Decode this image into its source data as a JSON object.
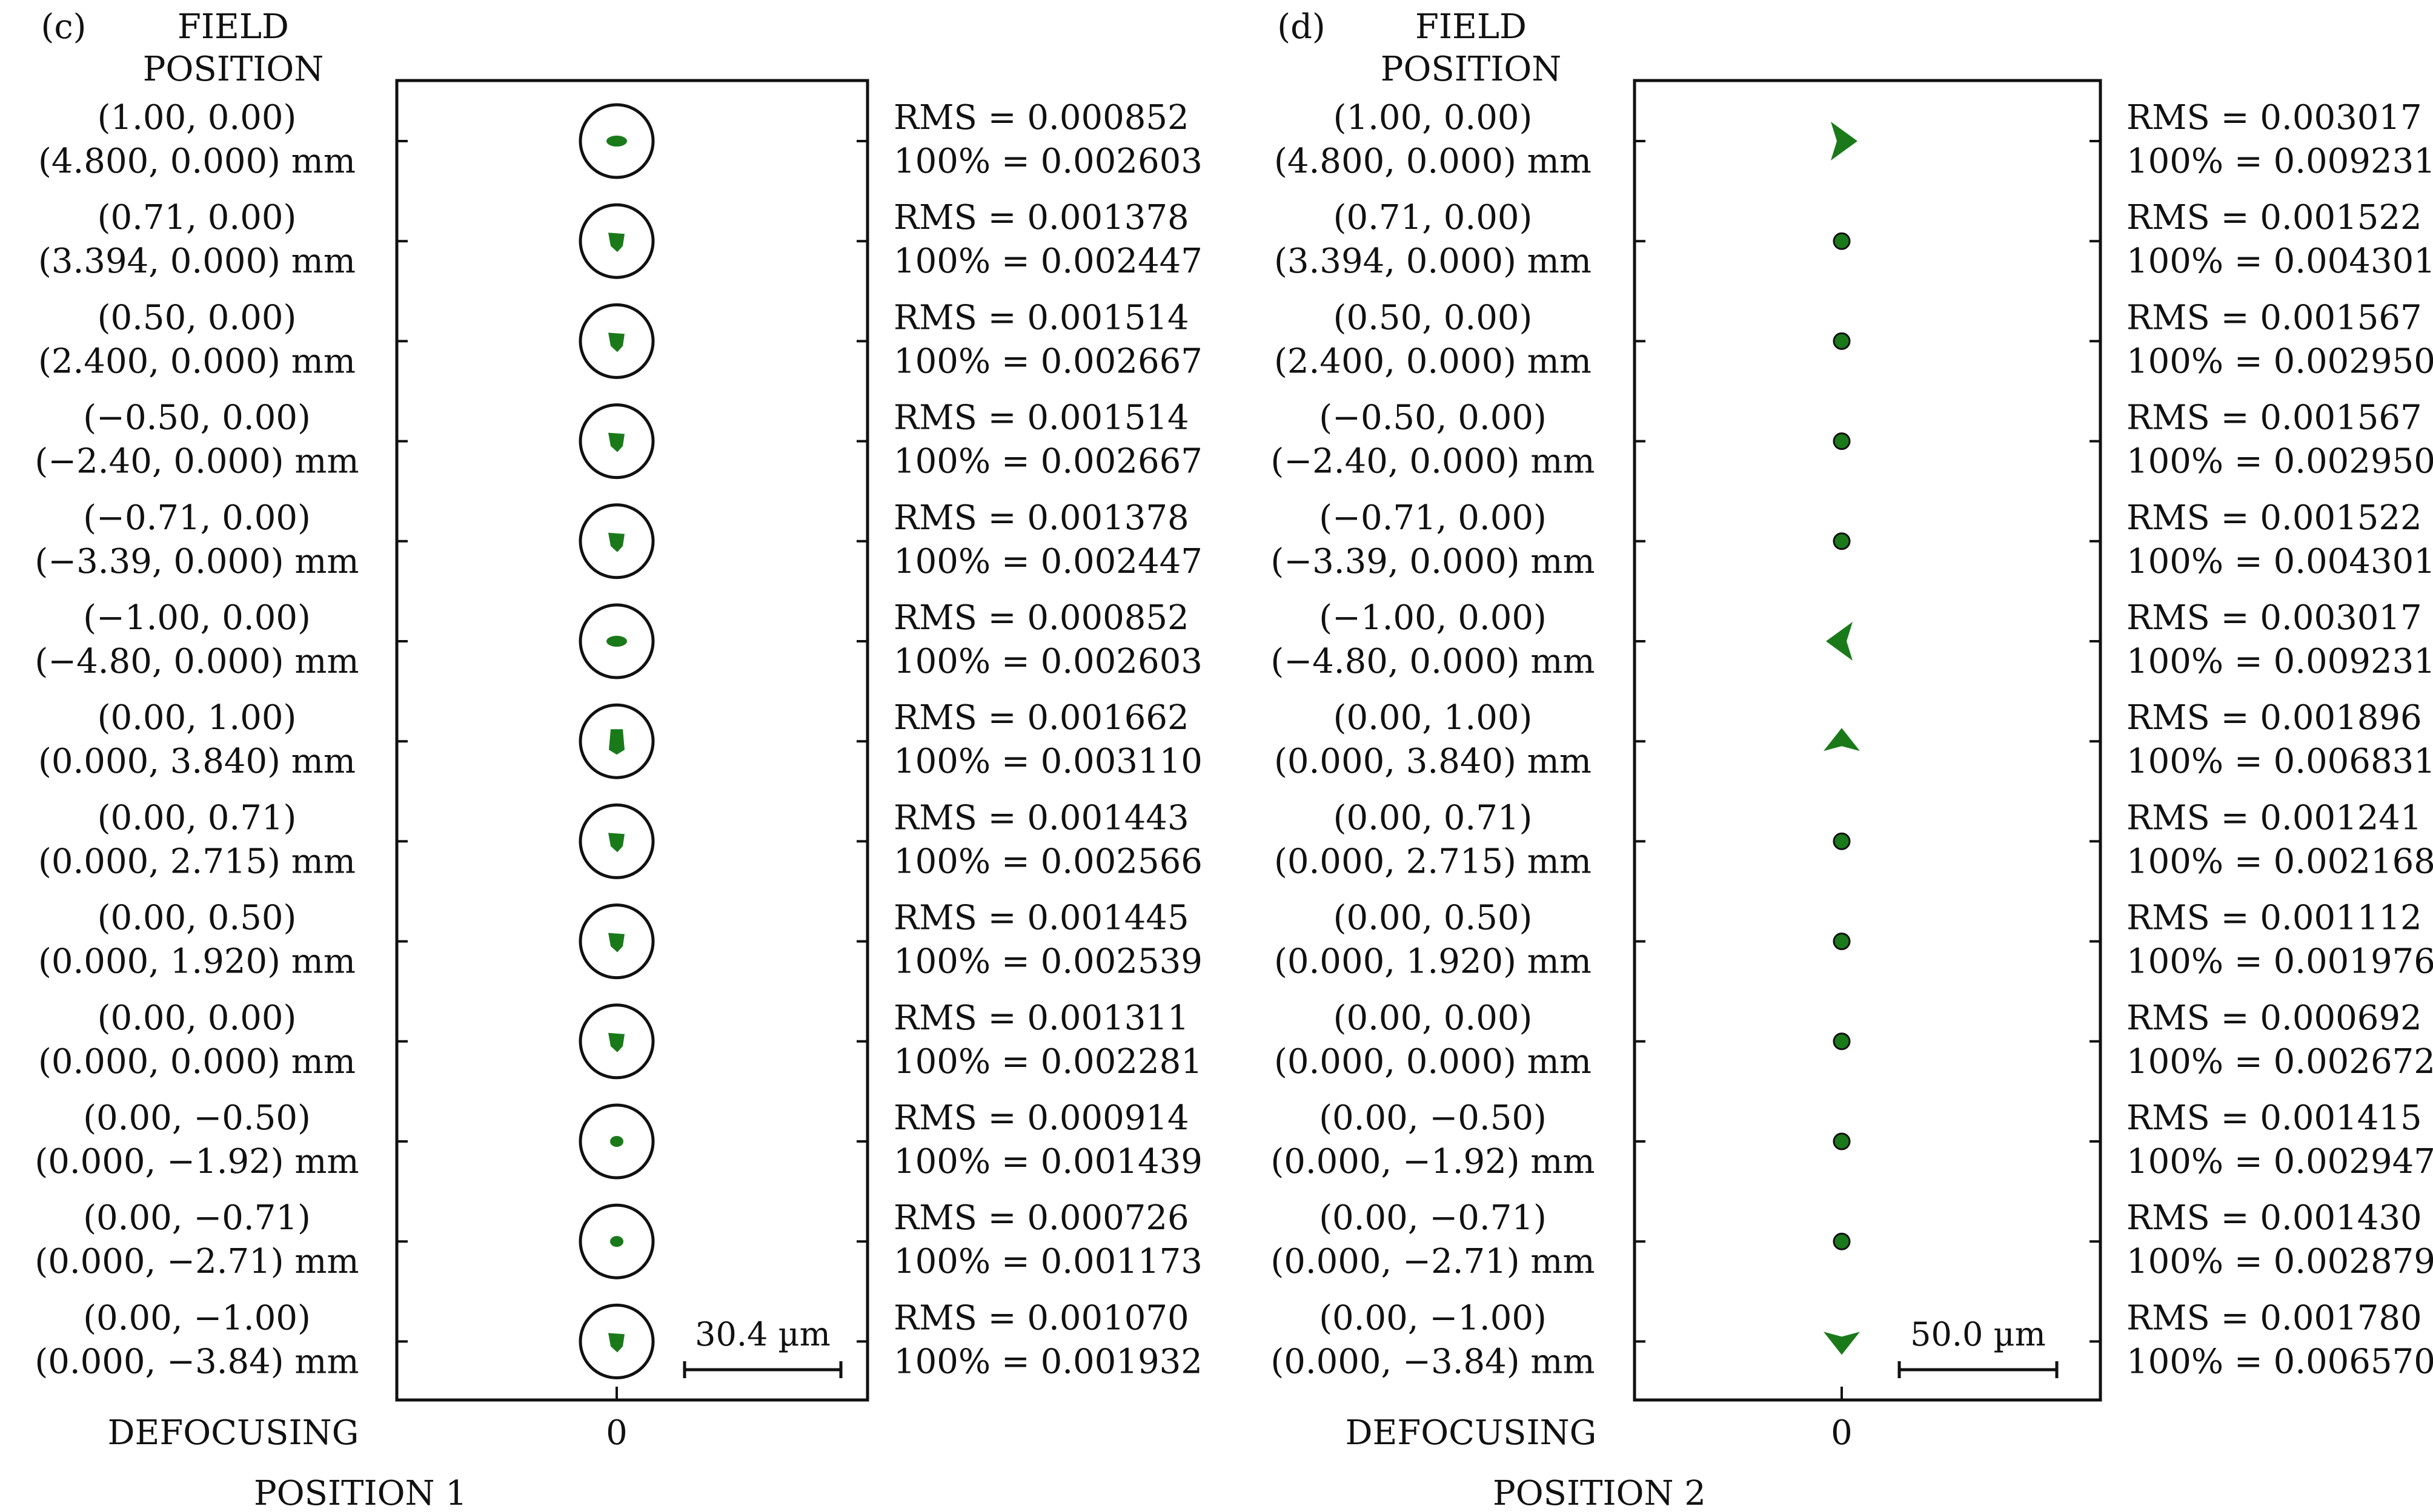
{
  "panels": [
    {
      "id": "c",
      "panel_label": "(c)",
      "field_header": [
        "FIELD",
        "POSITION"
      ],
      "defocus_label": "DEFOCUSING",
      "defocus_tick": "0",
      "position_label": "POSITION 1",
      "scale_label": "30.4 µm",
      "spot_color": "#1a7a1a",
      "airy_disk_shown": true,
      "rows": [
        {
          "field": "(1.00, 0.00)",
          "coord": "(4.800, 0.000) mm",
          "rms": "RMS = 0.000852",
          "geo": "100% = 0.002603",
          "spot": "smear-h"
        },
        {
          "field": "(0.71, 0.00)",
          "coord": "(3.394, 0.000) mm",
          "rms": "RMS = 0.001378",
          "geo": "100% = 0.002447",
          "spot": "blob"
        },
        {
          "field": "(0.50, 0.00)",
          "coord": "(2.400, 0.000) mm",
          "rms": "RMS = 0.001514",
          "geo": "100% = 0.002667",
          "spot": "blob"
        },
        {
          "field": "(−0.50, 0.00)",
          "coord": "(−2.40, 0.000) mm",
          "rms": "RMS = 0.001514",
          "geo": "100% = 0.002667",
          "spot": "blob"
        },
        {
          "field": "(−0.71, 0.00)",
          "coord": "(−3.39, 0.000) mm",
          "rms": "RMS = 0.001378",
          "geo": "100% = 0.002447",
          "spot": "blob"
        },
        {
          "field": "(−1.00, 0.00)",
          "coord": "(−4.80, 0.000) mm",
          "rms": "RMS = 0.000852",
          "geo": "100% = 0.002603",
          "spot": "smear-h"
        },
        {
          "field": "(0.00, 1.00)",
          "coord": "(0.000, 3.840) mm",
          "rms": "RMS = 0.001662",
          "geo": "100% = 0.003110",
          "spot": "tall"
        },
        {
          "field": "(0.00, 0.71)",
          "coord": "(0.000, 2.715) mm",
          "rms": "RMS = 0.001443",
          "geo": "100% = 0.002566",
          "spot": "blob"
        },
        {
          "field": "(0.00, 0.50)",
          "coord": "(0.000, 1.920) mm",
          "rms": "RMS = 0.001445",
          "geo": "100% = 0.002539",
          "spot": "blob"
        },
        {
          "field": "(0.00, 0.00)",
          "coord": "(0.000, 0.000) mm",
          "rms": "RMS = 0.001311",
          "geo": "100% = 0.002281",
          "spot": "blob"
        },
        {
          "field": "(0.00, −0.50)",
          "coord": "(0.000, −1.92) mm",
          "rms": "RMS = 0.000914",
          "geo": "100% = 0.001439",
          "spot": "small"
        },
        {
          "field": "(0.00, −0.71)",
          "coord": "(0.000, −2.71) mm",
          "rms": "RMS = 0.000726",
          "geo": "100% = 0.001173",
          "spot": "small"
        },
        {
          "field": "(0.00, −1.00)",
          "coord": "(0.000, −3.84) mm",
          "rms": "RMS = 0.001070",
          "geo": "100% = 0.001932",
          "spot": "blob"
        }
      ]
    },
    {
      "id": "d",
      "panel_label": "(d)",
      "field_header": [
        "FIELD",
        "POSITION"
      ],
      "defocus_label": "DEFOCUSING",
      "defocus_tick": "0",
      "position_label": "POSITION 2",
      "scale_label": "50.0 µm",
      "spot_color": "#1a7a1a",
      "airy_disk_shown": false,
      "rows": [
        {
          "field": "(1.00, 0.00)",
          "coord": "(4.800, 0.000) mm",
          "rms": "RMS = 0.003017",
          "geo": "100% = 0.009231",
          "spot": "arrow-r"
        },
        {
          "field": "(0.71, 0.00)",
          "coord": "(3.394, 0.000) mm",
          "rms": "RMS = 0.001522",
          "geo": "100% = 0.004301",
          "spot": "dot"
        },
        {
          "field": "(0.50, 0.00)",
          "coord": "(2.400, 0.000) mm",
          "rms": "RMS = 0.001567",
          "geo": "100% = 0.002950",
          "spot": "dot"
        },
        {
          "field": "(−0.50, 0.00)",
          "coord": "(−2.40, 0.000) mm",
          "rms": "RMS = 0.001567",
          "geo": "100% = 0.002950",
          "spot": "dot"
        },
        {
          "field": "(−0.71, 0.00)",
          "coord": "(−3.39, 0.000) mm",
          "rms": "RMS = 0.001522",
          "geo": "100% = 0.004301",
          "spot": "dot"
        },
        {
          "field": "(−1.00, 0.00)",
          "coord": "(−4.80, 0.000) mm",
          "rms": "RMS = 0.003017",
          "geo": "100% = 0.009231",
          "spot": "arrow-l"
        },
        {
          "field": "(0.00, 1.00)",
          "coord": "(0.000, 3.840) mm",
          "rms": "RMS = 0.001896",
          "geo": "100% = 0.006831",
          "spot": "arrow-u"
        },
        {
          "field": "(0.00, 0.71)",
          "coord": "(0.000, 2.715) mm",
          "rms": "RMS = 0.001241",
          "geo": "100% = 0.002168",
          "spot": "dot"
        },
        {
          "field": "(0.00, 0.50)",
          "coord": "(0.000, 1.920) mm",
          "rms": "RMS = 0.001112",
          "geo": "100% = 0.001976",
          "spot": "dot"
        },
        {
          "field": "(0.00, 0.00)",
          "coord": "(0.000, 0.000) mm",
          "rms": "RMS = 0.000692",
          "geo": "100% = 0.002672",
          "spot": "dot"
        },
        {
          "field": "(0.00, −0.50)",
          "coord": "(0.000, −1.92) mm",
          "rms": "RMS = 0.001415",
          "geo": "100% = 0.002947",
          "spot": "dot"
        },
        {
          "field": "(0.00, −0.71)",
          "coord": "(0.000, −2.71) mm",
          "rms": "RMS = 0.001430",
          "geo": "100% = 0.002879",
          "spot": "dot"
        },
        {
          "field": "(0.00, −1.00)",
          "coord": "(0.000, −3.84) mm",
          "rms": "RMS = 0.001780",
          "geo": "100% = 0.006570",
          "spot": "arrow-d"
        }
      ]
    }
  ]
}
